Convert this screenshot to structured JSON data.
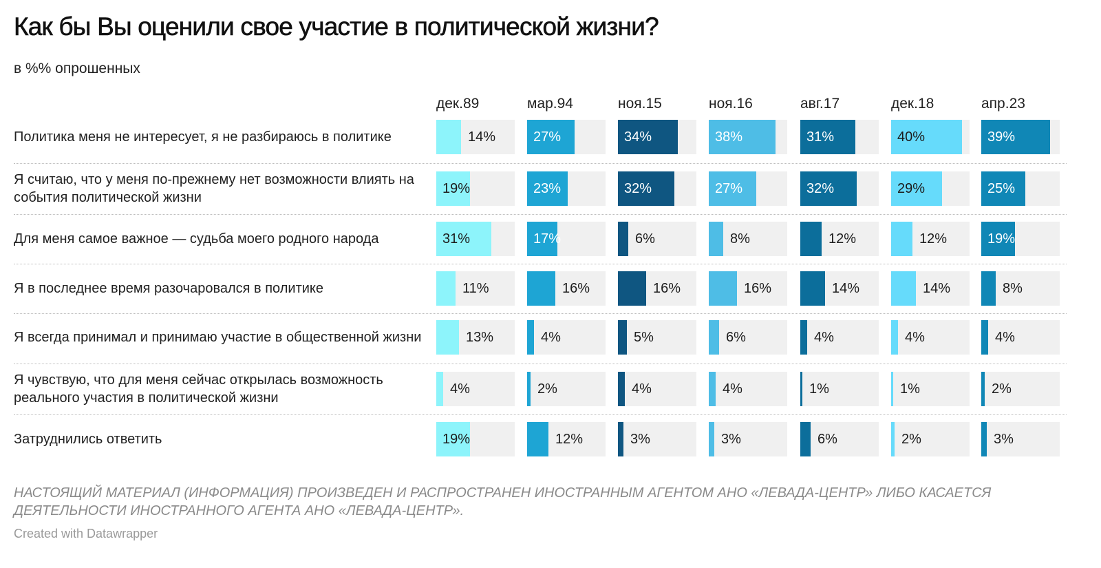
{
  "title": "Как бы Вы оценили свое участие в политической жизни?",
  "subtitle": "в %% опрошенных",
  "chart_data": {
    "type": "table",
    "columns": [
      "дек.89",
      "мар.94",
      "ноя.15",
      "ноя.16",
      "авг.17",
      "дек.18",
      "апр.23"
    ],
    "column_colors": [
      "#8df4fb",
      "#1ea5d4",
      "#0f5681",
      "#4ebde6",
      "#0c6e9b",
      "#66dbfb",
      "#1087b6"
    ],
    "background_color": "#f0f0f0",
    "rows": [
      {
        "label": "Политика меня не интересует, я не разбираюсь в политике",
        "values": [
          14,
          27,
          34,
          38,
          31,
          40,
          39
        ]
      },
      {
        "label": "Я считаю, что у меня по-прежнему нет возможности влиять на события политической жизни",
        "values": [
          19,
          23,
          32,
          27,
          32,
          29,
          25
        ]
      },
      {
        "label": "Для меня самое важное — судьба моего родного народа",
        "values": [
          31,
          17,
          6,
          8,
          12,
          12,
          19
        ]
      },
      {
        "label": "Я в последнее время разочаровался в политике",
        "values": [
          11,
          16,
          16,
          16,
          14,
          14,
          8
        ]
      },
      {
        "label": "Я всегда принимал и принимаю участие в общественной жизни",
        "values": [
          13,
          4,
          5,
          6,
          4,
          4,
          4
        ]
      },
      {
        "label": "Я чувствую, что для меня сейчас открылась возможность реального участия в политической жизни",
        "values": [
          4,
          2,
          4,
          4,
          1,
          1,
          2
        ]
      },
      {
        "label": "Затруднились ответить",
        "values": [
          19,
          12,
          3,
          3,
          6,
          2,
          3
        ]
      }
    ],
    "value_suffix": "%",
    "scale_max": 40
  },
  "footnote": "НАСТОЯЩИЙ МАТЕРИАЛ (ИНФОРМАЦИЯ) ПРОИЗВЕДЕН И РАСПРОСТРАНЕН ИНОСТРАННЫМ АГЕНТОМ АНО «ЛЕВАДА-ЦЕНТР» ЛИБО КАСАЕТСЯ ДЕЯТЕЛЬНОСТИ ИНОСТРАННОГО АГЕНТА АНО «ЛЕВАДА-ЦЕНТР».",
  "credit": "Created with Datawrapper"
}
